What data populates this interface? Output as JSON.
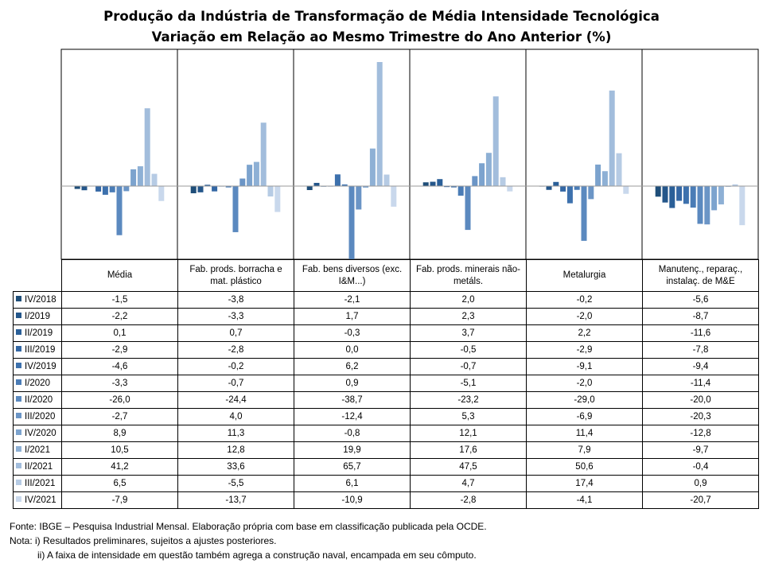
{
  "title_line1": "Produção da Indústria de Transformação de Média Intensidade Tecnológica",
  "title_line2": "Variação em Relação ao Mesmo Trimestre do Ano Anterior (%)",
  "footer": {
    "source": "Fonte: IBGE – Pesquisa Industrial Mensal. Elaboração própria com base em classificação publicada pela OCDE.",
    "note1": "Nota: i) Resultados preliminares, sujeitos a ajustes posteriores.",
    "note2": "ii) A faixa de intensidade em questão também agrega a construção naval, encampada em seu cômputo."
  },
  "chart_data": {
    "type": "bar",
    "title": "Produção da Indústria de Transformação de Média Intensidade Tecnológica — Variação em Relação ao Mesmo Trimestre do Ano Anterior (%)",
    "categories": [
      "Média",
      "Fab. prods. borracha e mat. plástico",
      "Fab. bens diversos (exc. I&M...)",
      "Fab. prods. minerais não-metáls.",
      "Metalurgia",
      "Manutenç., reparaç., instalaç. de M&E"
    ],
    "category_lines": [
      [
        "Média"
      ],
      [
        "Fab. prods. borracha e",
        "mat. plástico"
      ],
      [
        "Fab. bens diversos (exc.",
        "I&M...)"
      ],
      [
        "Fab. prods. minerais não-",
        "metáls."
      ],
      [
        "Metalurgia"
      ],
      [
        "Manutenç., reparaç.,",
        "instalaç. de M&E"
      ]
    ],
    "series": [
      {
        "name": "IV/2018",
        "color": "#1f4e79",
        "values": [
          "-1,5",
          "-3,8",
          "-2,1",
          "2,0",
          "-0,2",
          "-5,6"
        ]
      },
      {
        "name": "I/2019",
        "color": "#24568a",
        "values": [
          "-2,2",
          "-3,3",
          "1,7",
          "2,3",
          "-2,0",
          "-8,7"
        ]
      },
      {
        "name": "II/2019",
        "color": "#2a5f98",
        "values": [
          "0,1",
          "0,7",
          "-0,3",
          "3,7",
          "2,2",
          "-11,6"
        ]
      },
      {
        "name": "III/2019",
        "color": "#3467a4",
        "values": [
          "-2,9",
          "-2,8",
          "0,0",
          "-0,5",
          "-2,9",
          "-7,8"
        ]
      },
      {
        "name": "IV/2019",
        "color": "#3d71ad",
        "values": [
          "-4,6",
          "-0,2",
          "6,2",
          "-0,7",
          "-9,1",
          "-9,4"
        ]
      },
      {
        "name": "I/2020",
        "color": "#4a7cb6",
        "values": [
          "-3,3",
          "-0,7",
          "0,9",
          "-5,1",
          "-2,0",
          "-11,4"
        ]
      },
      {
        "name": "II/2020",
        "color": "#5b89bf",
        "values": [
          "-26,0",
          "-24,4",
          "-38,7",
          "-23,2",
          "-29,0",
          "-20,0"
        ]
      },
      {
        "name": "III/2020",
        "color": "#6b95c6",
        "values": [
          "-2,7",
          "4,0",
          "-12,4",
          "5,3",
          "-6,9",
          "-20,3"
        ]
      },
      {
        "name": "IV/2020",
        "color": "#7ca3ce",
        "values": [
          "8,9",
          "11,3",
          "-0,8",
          "12,1",
          "11,4",
          "-12,8"
        ]
      },
      {
        "name": "I/2021",
        "color": "#8eb0d5",
        "values": [
          "10,5",
          "12,8",
          "19,9",
          "17,6",
          "7,9",
          "-9,7"
        ]
      },
      {
        "name": "II/2021",
        "color": "#a2bddc",
        "values": [
          "41,2",
          "33,6",
          "65,7",
          "47,5",
          "50,6",
          "-0,4"
        ]
      },
      {
        "name": "III/2021",
        "color": "#b6cbe4",
        "values": [
          "6,5",
          "-5,5",
          "6,1",
          "4,7",
          "17,4",
          "0,9"
        ]
      },
      {
        "name": "IV/2021",
        "color": "#c9d8ec",
        "values": [
          "-7,9",
          "-13,7",
          "-10,9",
          "-2,8",
          "-4,1",
          "-20,7"
        ]
      }
    ],
    "xlabel": "",
    "ylabel": "",
    "grid": false,
    "legend": "table"
  }
}
